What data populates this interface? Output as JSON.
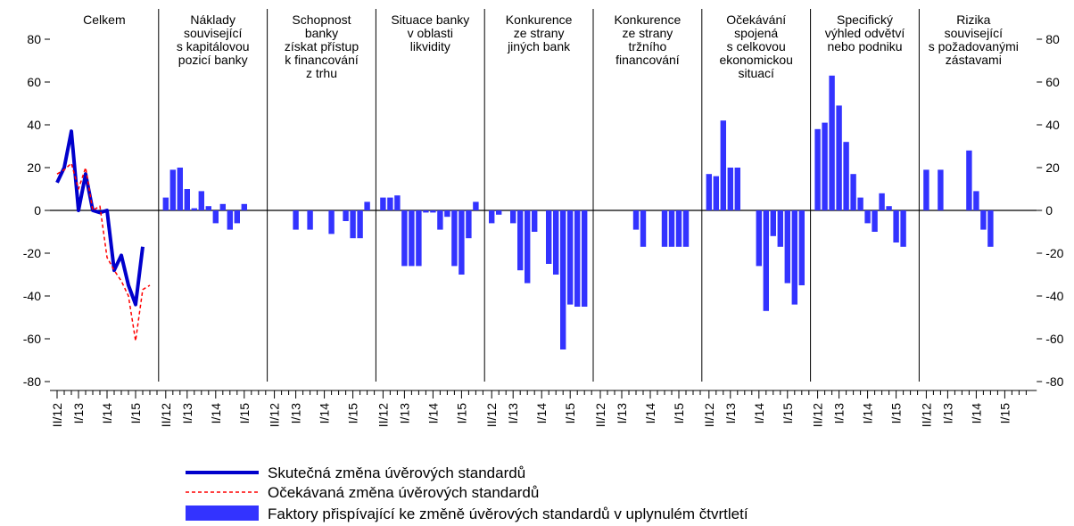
{
  "chart_data": [
    {
      "type": "line",
      "title": [
        "Celkem"
      ],
      "categories": [
        "II/12",
        null,
        null,
        "I/13",
        null,
        null,
        null,
        "I/14",
        null,
        null,
        null,
        "I/15",
        null,
        null,
        null
      ],
      "series": [
        {
          "name": "Skutečná změna úvěrových standardů",
          "color": "#0000cc",
          "style": "solid",
          "values": [
            13,
            20,
            37,
            0,
            17,
            0,
            -1,
            0,
            -28,
            -21,
            -35,
            -44,
            -17,
            null,
            null
          ]
        },
        {
          "name": "Očekávaná změna úvěrových standardů",
          "color": "#ff0000",
          "style": "dashed",
          "values": [
            17,
            19,
            22,
            10,
            20,
            0,
            2,
            -22,
            -28,
            -33,
            -40,
            -61,
            -37,
            -35,
            null
          ]
        }
      ],
      "ylim": [
        -80,
        80
      ],
      "yticks": [
        -80,
        -60,
        -40,
        -20,
        0,
        20,
        40,
        60,
        80
      ]
    },
    {
      "type": "bar",
      "title": [
        "Náklady",
        "související",
        "s kapitálovou",
        "pozicí banky"
      ],
      "categories": [
        "II/12",
        null,
        null,
        "I/13",
        null,
        null,
        null,
        "I/14",
        null,
        null,
        null,
        "I/15",
        null,
        null,
        null
      ],
      "color": "#3333ff",
      "values": [
        6,
        19,
        20,
        10,
        1,
        9,
        2,
        -6,
        3,
        -9,
        -6,
        3,
        null,
        null,
        null
      ],
      "ylim": [
        -80,
        80
      ]
    },
    {
      "type": "bar",
      "title": [
        "Schopnost",
        "banky",
        "získat přístup",
        "k financování",
        "z trhu"
      ],
      "categories": [
        "II/12",
        null,
        null,
        "I/13",
        null,
        null,
        null,
        "I/14",
        null,
        null,
        null,
        "I/15",
        null,
        null,
        null
      ],
      "color": "#3333ff",
      "values": [
        null,
        null,
        null,
        -9,
        null,
        -9,
        null,
        null,
        -11,
        null,
        -5,
        -13,
        -13,
        4,
        null
      ],
      "ylim": [
        -80,
        80
      ]
    },
    {
      "type": "bar",
      "title": [
        "Situace banky",
        "v oblasti",
        "likvidity"
      ],
      "categories": [
        "II/12",
        null,
        null,
        "I/13",
        null,
        null,
        null,
        "I/14",
        null,
        null,
        null,
        "I/15",
        null,
        null,
        null
      ],
      "color": "#3333ff",
      "values": [
        6,
        6,
        7,
        -26,
        -26,
        -26,
        -1,
        -1,
        -9,
        -3,
        -26,
        -30,
        -13,
        4,
        null
      ],
      "ylim": [
        -80,
        80
      ]
    },
    {
      "type": "bar",
      "title": [
        "Konkurence",
        "ze strany",
        "jiných bank"
      ],
      "categories": [
        "II/12",
        null,
        null,
        "I/13",
        null,
        null,
        null,
        "I/14",
        null,
        null,
        null,
        "I/15",
        null,
        null,
        null
      ],
      "color": "#3333ff",
      "values": [
        -6,
        -2,
        null,
        -6,
        -28,
        -34,
        -10,
        null,
        -25,
        -30,
        -65,
        -44,
        -45,
        -45,
        null
      ],
      "ylim": [
        -80,
        80
      ]
    },
    {
      "type": "bar",
      "title": [
        "Konkurence",
        "ze strany",
        "tržního",
        "financování"
      ],
      "categories": [
        "II/12",
        null,
        null,
        "I/13",
        null,
        null,
        null,
        "I/14",
        null,
        null,
        null,
        "I/15",
        null,
        null,
        null
      ],
      "color": "#3333ff",
      "values": [
        null,
        null,
        null,
        null,
        null,
        -9,
        -17,
        null,
        null,
        -17,
        -17,
        -17,
        -17,
        null,
        null
      ],
      "ylim": [
        -80,
        80
      ]
    },
    {
      "type": "bar",
      "title": [
        "Očekávání",
        "spojená",
        "s celkovou",
        "ekonomickou",
        "situací"
      ],
      "categories": [
        "II/12",
        null,
        null,
        "I/13",
        null,
        null,
        null,
        "I/14",
        null,
        null,
        null,
        "I/15",
        null,
        null,
        null
      ],
      "color": "#3333ff",
      "values": [
        17,
        16,
        42,
        20,
        20,
        null,
        null,
        -26,
        -47,
        -12,
        -17,
        -34,
        -44,
        -35,
        null
      ],
      "ylim": [
        -80,
        80
      ]
    },
    {
      "type": "bar",
      "title": [
        "Specifický",
        "výhled odvětví",
        "nebo podniku"
      ],
      "categories": [
        "II/12",
        null,
        null,
        "I/13",
        null,
        null,
        null,
        "I/14",
        null,
        null,
        null,
        "I/15",
        null,
        null,
        null
      ],
      "color": "#3333ff",
      "values": [
        38,
        41,
        63,
        49,
        32,
        17,
        6,
        -6,
        -10,
        8,
        2,
        -15,
        -17,
        null,
        null
      ],
      "ylim": [
        -80,
        80
      ]
    },
    {
      "type": "bar",
      "title": [
        "Rizika",
        "související",
        "s požadovanými",
        "zástavami"
      ],
      "categories": [
        "II/12",
        null,
        null,
        "I/13",
        null,
        null,
        null,
        "I/14",
        null,
        null,
        null,
        "I/15",
        null,
        null,
        null
      ],
      "color": "#3333ff",
      "values": [
        19,
        null,
        19,
        null,
        null,
        null,
        28,
        9,
        -9,
        -17,
        null,
        null,
        null,
        null,
        null
      ],
      "ylim": [
        -80,
        80
      ],
      "yticks": [
        -80,
        -60,
        -40,
        -20,
        0,
        20,
        40,
        60,
        80
      ]
    }
  ],
  "legend_bars": "Faktory přispívající ke změně úvěrových standardů v uplynulém čtvrtletí"
}
